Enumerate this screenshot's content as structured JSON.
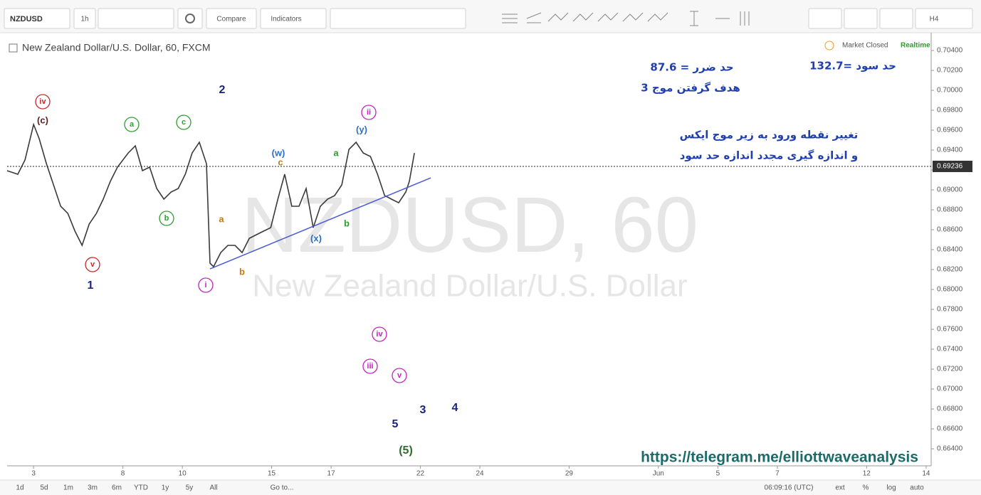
{
  "toolbar": {
    "symbol": "NZDUSD",
    "interval": "1h",
    "compare": "Compare",
    "indicators": "Indicators",
    "timeframe": "H4"
  },
  "legend": {
    "title": "New Zealand Dollar/U.S. Dollar, 60, FXCM",
    "status": "Market Closed",
    "feed": "Realtime"
  },
  "watermark": {
    "symbol": "NZDUSD, 60",
    "name": "New Zealand Dollar/U.S. Dollar"
  },
  "notes": [
    "حد ضرر = 87.6",
    "هدف گرفتن موج 3",
    "حد سود =132.7",
    "تغییر نقطه ورود به زیر موج ایکس",
    "و اندازه گیری مجدد اندازه حد سود"
  ],
  "link": "https://telegram.me/elliottwaveanalysis",
  "chart_data": {
    "type": "line",
    "color": "#3a3a3a",
    "x": [
      -0.89,
      -0.53,
      -0.29,
      0,
      0.19,
      0.43,
      0.67,
      0.91,
      1.15,
      1.39,
      1.63,
      1.87,
      2.11,
      2.34,
      2.58,
      2.82,
      3.18,
      3.42,
      3.66,
      3.9,
      4.14,
      4.38,
      4.62,
      4.86,
      5.1,
      5.33,
      5.57,
      5.81,
      5.93,
      6.05,
      6.29,
      6.53,
      6.77,
      7.01,
      7.25,
      7.49,
      7.73,
      7.97,
      8.21,
      8.44,
      8.68,
      8.92,
      9.16,
      9.4,
      9.64,
      9.88,
      10.12,
      10.36,
      10.6,
      10.84,
      11.08,
      11.32,
      11.56,
      11.8,
      12.03,
      12.27,
      12.51,
      12.63,
      12.8
    ],
    "values": [
      0.69193,
      0.69157,
      0.693,
      0.69657,
      0.69514,
      0.69264,
      0.6905,
      0.68836,
      0.68764,
      0.68586,
      0.68443,
      0.68657,
      0.68764,
      0.68907,
      0.69086,
      0.69229,
      0.69371,
      0.69443,
      0.69193,
      0.69229,
      0.69014,
      0.68907,
      0.68979,
      0.69014,
      0.69157,
      0.69371,
      0.69479,
      0.69264,
      0.68264,
      0.68229,
      0.68371,
      0.68443,
      0.68443,
      0.68371,
      0.68514,
      0.6855,
      0.68586,
      0.68621,
      0.68907,
      0.69157,
      0.68836,
      0.68836,
      0.69014,
      0.68621,
      0.68836,
      0.68907,
      0.68943,
      0.6905,
      0.69407,
      0.69479,
      0.69371,
      0.69336,
      0.69157,
      0.68943,
      0.68907,
      0.68871,
      0.68979,
      0.69086,
      0.69371
    ],
    "xlim": [
      -0.89,
      30.17
    ],
    "ylim": [
      0.66229,
      0.7055
    ],
    "xticks": [
      {
        "value": 0,
        "label": "3"
      },
      {
        "value": 3,
        "label": "8"
      },
      {
        "value": 5,
        "label": "10"
      },
      {
        "value": 8,
        "label": "15"
      },
      {
        "value": 10,
        "label": "17"
      },
      {
        "value": 13,
        "label": "22"
      },
      {
        "value": 15,
        "label": "24"
      },
      {
        "value": 18,
        "label": "29"
      },
      {
        "value": 21,
        "label": "Jun"
      },
      {
        "value": 23,
        "label": "5"
      },
      {
        "value": 25,
        "label": "7"
      },
      {
        "value": 28,
        "label": "12"
      },
      {
        "value": 30,
        "label": "14"
      }
    ],
    "yticks": [
      {
        "value": 0.704,
        "label": "0.70400"
      },
      {
        "value": 0.702,
        "label": "0.70200"
      },
      {
        "value": 0.7,
        "label": "0.70000"
      },
      {
        "value": 0.698,
        "label": "0.69800"
      },
      {
        "value": 0.696,
        "label": "0.69600"
      },
      {
        "value": 0.694,
        "label": "0.69400"
      },
      {
        "value": 0.692,
        "label": "0.69200"
      },
      {
        "value": 0.69,
        "label": "0.69000"
      },
      {
        "value": 0.688,
        "label": "0.68800"
      },
      {
        "value": 0.686,
        "label": "0.68600"
      },
      {
        "value": 0.684,
        "label": "0.68400"
      },
      {
        "value": 0.682,
        "label": "0.68200"
      },
      {
        "value": 0.68,
        "label": "0.68000"
      },
      {
        "value": 0.678,
        "label": "0.67800"
      },
      {
        "value": 0.676,
        "label": "0.67600"
      },
      {
        "value": 0.674,
        "label": "0.67400"
      },
      {
        "value": 0.672,
        "label": "0.67200"
      },
      {
        "value": 0.67,
        "label": "0.67000"
      },
      {
        "value": 0.668,
        "label": "0.66800"
      },
      {
        "value": 0.666,
        "label": "0.66600"
      },
      {
        "value": 0.664,
        "label": "0.66400"
      }
    ],
    "last_price": {
      "value": 0.69236,
      "label": "0.69236"
    },
    "trendline": {
      "x": [
        5.93,
        13.35
      ],
      "values": [
        0.68207,
        0.69121
      ],
      "color": "#4a5ad8"
    },
    "annotations": [
      {
        "text": "iv",
        "color": "#c62828",
        "circled": true
      },
      {
        "text": "(c)",
        "color": "#5d1f1f",
        "circled": false
      },
      {
        "text": "v",
        "color": "#c62828",
        "circled": true
      },
      {
        "text": "1",
        "color": "#1a237e",
        "circled": false
      },
      {
        "text": "a",
        "color": "#2e9e2e",
        "circled": true
      },
      {
        "text": "c",
        "color": "#2e9e2e",
        "circled": true
      },
      {
        "text": "b",
        "color": "#2e9e2e",
        "circled": true
      },
      {
        "text": "2",
        "color": "#1a237e",
        "circled": false
      },
      {
        "text": "i",
        "color": "#c020c0",
        "circled": true
      },
      {
        "text": "a",
        "color": "#c77a10",
        "circled": false
      },
      {
        "text": "b",
        "color": "#c77a10",
        "circled": false
      },
      {
        "text": "(w)",
        "color": "#2a6fc9",
        "circled": false
      },
      {
        "text": "c",
        "color": "#c77a10",
        "circled": false
      },
      {
        "text": "(x)",
        "color": "#2a6fc9",
        "circled": false
      },
      {
        "text": "a",
        "color": "#2e9e2e",
        "circled": false
      },
      {
        "text": "b",
        "color": "#2e9e2e",
        "circled": false
      },
      {
        "text": "ii",
        "color": "#c020c0",
        "circled": true
      },
      {
        "text": "(y)",
        "color": "#2a6fc9",
        "circled": false
      },
      {
        "text": "iv",
        "color": "#c020c0",
        "circled": true
      },
      {
        "text": "iii",
        "color": "#c020c0",
        "circled": true
      },
      {
        "text": "v",
        "color": "#c020c0",
        "circled": true
      },
      {
        "text": "3",
        "color": "#1a237e",
        "circled": false
      },
      {
        "text": "4",
        "color": "#1a237e",
        "circled": false
      },
      {
        "text": "5",
        "color": "#1a237e",
        "circled": false
      },
      {
        "text": "(5)",
        "color": "#2e6b2e",
        "circled": false
      }
    ]
  },
  "range_bar": {
    "ranges": [
      "1d",
      "5d",
      "1m",
      "3m",
      "6m",
      "YTD",
      "1y",
      "5y",
      "All"
    ],
    "goto": "Go to...",
    "clock": "06:09:16 (UTC)",
    "options": [
      "ext",
      "%",
      "log",
      "auto"
    ]
  }
}
